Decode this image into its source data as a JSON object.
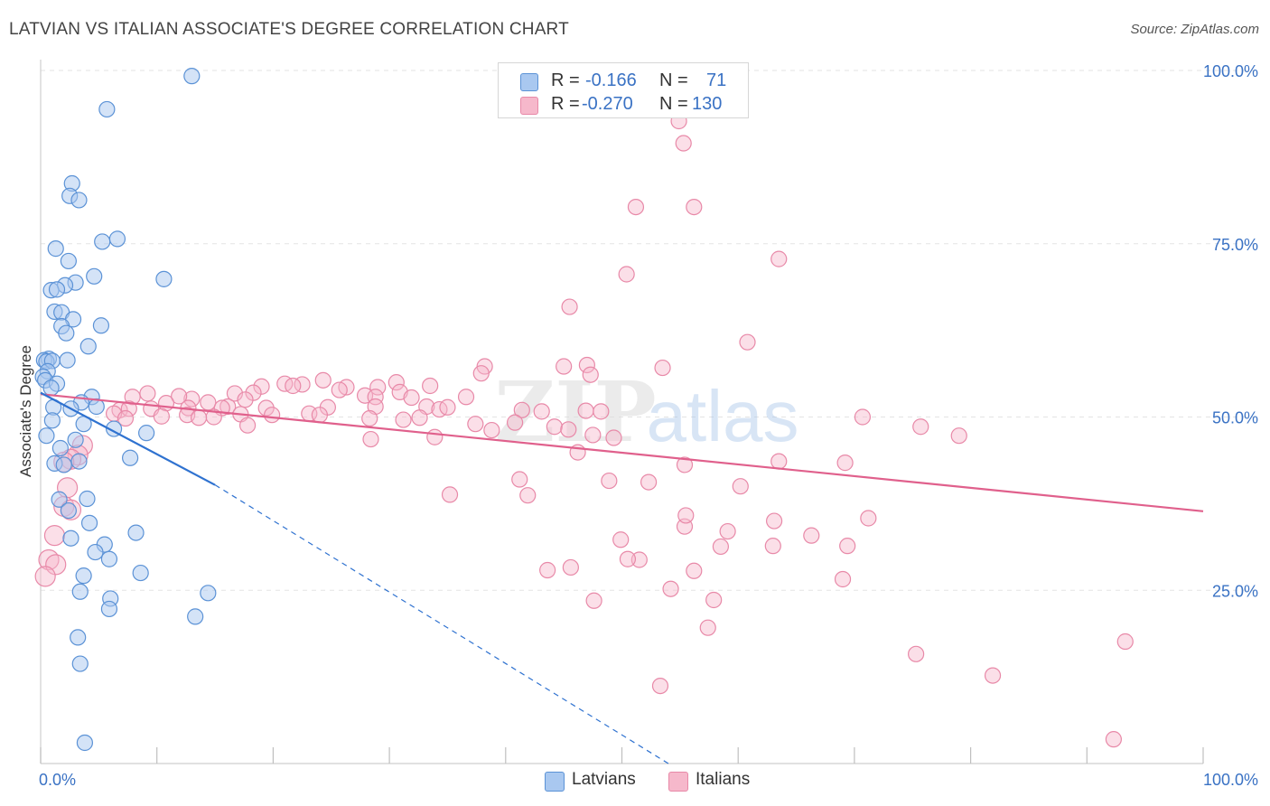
{
  "title": "LATVIAN VS ITALIAN ASSOCIATE'S DEGREE CORRELATION CHART",
  "source": "Source: ZipAtlas.com",
  "watermark": {
    "zip": "ZIP",
    "atlas": "atlas"
  },
  "stats": {
    "row1": {
      "r_label": "R =",
      "r_value": "-0.166",
      "n_label": "N =",
      "n_value": "71"
    },
    "row2": {
      "r_label": "R =",
      "r_value": "-0.270",
      "n_label": "N =",
      "n_value": "130"
    }
  },
  "legend": {
    "latvians": "Latvians",
    "italians": "Italians"
  },
  "colors": {
    "latvian_fill": "#a9c8f0",
    "latvian_stroke": "#5b92d6",
    "latvian_line": "#2f72d0",
    "italian_fill": "#f6b8cb",
    "italian_stroke": "#e889a8",
    "italian_line": "#e0608c",
    "tick_text": "#3a72c4",
    "grid": "#e3e3e3"
  },
  "chart_data": {
    "type": "scatter",
    "title": "LATVIAN VS ITALIAN ASSOCIATE'S DEGREE CORRELATION CHART",
    "xlabel": "",
    "ylabel": "Associate's Degree",
    "xlim": [
      0,
      100
    ],
    "ylim": [
      0,
      100
    ],
    "x_tick_labels": [
      "0.0%",
      "100.0%"
    ],
    "y_ticks": [
      25,
      50,
      75,
      100
    ],
    "y_tick_labels": [
      "25.0%",
      "50.0%",
      "75.0%",
      "100.0%"
    ],
    "grid": true,
    "legend_position": "bottom-center",
    "series": [
      {
        "name": "Latvians",
        "r": -0.166,
        "n": 71,
        "trend": {
          "x0": 0,
          "y0": 53.5,
          "x1": 15,
          "y1": 40.2,
          "dash_to_x": 54,
          "dash_to_y": 0
        },
        "points": [
          [
            13,
            99.2
          ],
          [
            5.7,
            94.4
          ],
          [
            2.7,
            83.7
          ],
          [
            2.5,
            81.9
          ],
          [
            3.3,
            81.3
          ],
          [
            5.3,
            75.3
          ],
          [
            6.6,
            75.7
          ],
          [
            1.3,
            74.3
          ],
          [
            2.4,
            72.5
          ],
          [
            4.6,
            70.3
          ],
          [
            10.6,
            69.9
          ],
          [
            3.0,
            69.4
          ],
          [
            2.1,
            69.0
          ],
          [
            0.9,
            68.3
          ],
          [
            1.4,
            68.4
          ],
          [
            1.2,
            65.2
          ],
          [
            1.8,
            65.1
          ],
          [
            2.8,
            64.1
          ],
          [
            1.8,
            63.1
          ],
          [
            5.2,
            63.2
          ],
          [
            2.2,
            62.1
          ],
          [
            4.1,
            60.2
          ],
          [
            0.7,
            58.4
          ],
          [
            0.3,
            58.2
          ],
          [
            0.5,
            58.0
          ],
          [
            1.0,
            58.1
          ],
          [
            2.3,
            58.2
          ],
          [
            0.6,
            56.6
          ],
          [
            0.2,
            55.8
          ],
          [
            0.4,
            55.3
          ],
          [
            1.4,
            54.8
          ],
          [
            0.9,
            54.2
          ],
          [
            4.4,
            52.9
          ],
          [
            3.5,
            52.1
          ],
          [
            1.1,
            51.4
          ],
          [
            2.6,
            51.2
          ],
          [
            4.8,
            51.5
          ],
          [
            1.0,
            49.5
          ],
          [
            3.7,
            49.0
          ],
          [
            6.3,
            48.3
          ],
          [
            9.1,
            47.7
          ],
          [
            0.5,
            47.3
          ],
          [
            3.0,
            46.7
          ],
          [
            1.7,
            45.5
          ],
          [
            1.2,
            43.3
          ],
          [
            2.0,
            43.1
          ],
          [
            7.7,
            44.1
          ],
          [
            3.3,
            43.6
          ],
          [
            1.6,
            38.1
          ],
          [
            4.0,
            38.2
          ],
          [
            2.4,
            36.5
          ],
          [
            4.2,
            34.7
          ],
          [
            8.2,
            33.3
          ],
          [
            2.6,
            32.5
          ],
          [
            5.5,
            31.6
          ],
          [
            4.7,
            30.5
          ],
          [
            5.9,
            29.5
          ],
          [
            8.6,
            27.5
          ],
          [
            3.7,
            27.1
          ],
          [
            3.4,
            24.8
          ],
          [
            6.0,
            23.8
          ],
          [
            14.4,
            24.6
          ],
          [
            5.9,
            22.3
          ],
          [
            13.3,
            21.2
          ],
          [
            3.2,
            18.2
          ],
          [
            3.4,
            14.4
          ],
          [
            3.8,
            3.0
          ]
        ]
      },
      {
        "name": "Italians",
        "r": -0.27,
        "n": 130,
        "trend": {
          "x0": 0,
          "y0": 53.3,
          "x1": 100,
          "y1": 36.4
        },
        "points": [
          [
            54.9,
            92.7
          ],
          [
            55.3,
            89.5
          ],
          [
            51.2,
            80.3
          ],
          [
            56.2,
            80.3
          ],
          [
            63.5,
            72.8
          ],
          [
            50.4,
            70.6
          ],
          [
            45.5,
            65.9
          ],
          [
            60.8,
            60.8
          ],
          [
            45.0,
            57.3
          ],
          [
            53.5,
            57.1
          ],
          [
            47.0,
            57.5
          ],
          [
            38.2,
            57.3
          ],
          [
            37.9,
            56.3
          ],
          [
            47.3,
            56.1
          ],
          [
            24.3,
            55.3
          ],
          [
            22.5,
            54.7
          ],
          [
            30.6,
            55.0
          ],
          [
            33.5,
            54.5
          ],
          [
            21.0,
            54.8
          ],
          [
            19.0,
            54.4
          ],
          [
            26.3,
            54.3
          ],
          [
            13.0,
            52.6
          ],
          [
            16.7,
            53.4
          ],
          [
            18.3,
            53.5
          ],
          [
            21.7,
            54.5
          ],
          [
            29.0,
            54.3
          ],
          [
            25.7,
            53.9
          ],
          [
            30.9,
            53.6
          ],
          [
            31.9,
            52.8
          ],
          [
            36.6,
            52.9
          ],
          [
            17.6,
            52.5
          ],
          [
            27.9,
            53.1
          ],
          [
            28.8,
            52.9
          ],
          [
            11.9,
            53.0
          ],
          [
            7.9,
            52.9
          ],
          [
            9.2,
            53.4
          ],
          [
            10.8,
            52.0
          ],
          [
            14.4,
            52.1
          ],
          [
            16.1,
            51.5
          ],
          [
            12.7,
            51.3
          ],
          [
            15.6,
            51.3
          ],
          [
            19.4,
            51.3
          ],
          [
            9.5,
            51.2
          ],
          [
            6.8,
            51.0
          ],
          [
            7.6,
            51.2
          ],
          [
            24.7,
            51.4
          ],
          [
            28.8,
            51.5
          ],
          [
            33.2,
            51.5
          ],
          [
            34.3,
            51.1
          ],
          [
            35.0,
            51.4
          ],
          [
            41.4,
            51.0
          ],
          [
            43.1,
            50.8
          ],
          [
            46.9,
            50.9
          ],
          [
            48.2,
            50.8
          ],
          [
            10.4,
            50.1
          ],
          [
            12.6,
            50.3
          ],
          [
            14.9,
            50.0
          ],
          [
            17.2,
            50.4
          ],
          [
            19.9,
            50.3
          ],
          [
            23.1,
            50.5
          ],
          [
            13.6,
            49.9
          ],
          [
            24.0,
            50.3
          ],
          [
            28.3,
            49.8
          ],
          [
            31.2,
            49.6
          ],
          [
            32.6,
            49.9
          ],
          [
            40.8,
            49.2
          ],
          [
            37.4,
            49.0
          ],
          [
            17.8,
            48.8
          ],
          [
            38.8,
            48.1
          ],
          [
            44.2,
            48.6
          ],
          [
            45.4,
            48.2
          ],
          [
            47.5,
            47.4
          ],
          [
            49.3,
            47.0
          ],
          [
            33.9,
            47.1
          ],
          [
            28.4,
            46.8
          ],
          [
            6.3,
            50.5
          ],
          [
            7.3,
            49.8
          ],
          [
            70.7,
            50.0
          ],
          [
            75.7,
            48.6
          ],
          [
            79.0,
            47.3
          ],
          [
            3.6,
            45.9
          ],
          [
            3.2,
            44.5
          ],
          [
            2.6,
            43.9
          ],
          [
            2.0,
            43.5
          ],
          [
            46.2,
            44.9
          ],
          [
            55.4,
            43.1
          ],
          [
            63.5,
            43.6
          ],
          [
            69.2,
            43.4
          ],
          [
            41.2,
            41.0
          ],
          [
            52.3,
            40.6
          ],
          [
            48.9,
            40.8
          ],
          [
            41.9,
            38.7
          ],
          [
            35.2,
            38.8
          ],
          [
            2.3,
            39.8
          ],
          [
            2.0,
            37.1
          ],
          [
            2.6,
            36.6
          ],
          [
            55.4,
            34.2
          ],
          [
            71.2,
            35.4
          ],
          [
            59.1,
            33.5
          ],
          [
            66.3,
            32.9
          ],
          [
            69.4,
            31.4
          ],
          [
            63.0,
            31.4
          ],
          [
            58.5,
            31.3
          ],
          [
            0.7,
            29.4
          ],
          [
            1.2,
            32.9
          ],
          [
            49.9,
            32.3
          ],
          [
            51.5,
            29.4
          ],
          [
            50.5,
            29.5
          ],
          [
            45.6,
            28.3
          ],
          [
            56.2,
            27.8
          ],
          [
            43.6,
            27.9
          ],
          [
            1.3,
            28.7
          ],
          [
            0.4,
            27.0
          ],
          [
            69.0,
            26.6
          ],
          [
            54.2,
            25.2
          ],
          [
            47.6,
            23.5
          ],
          [
            57.9,
            23.6
          ],
          [
            57.4,
            19.6
          ],
          [
            75.3,
            15.8
          ],
          [
            81.9,
            12.7
          ],
          [
            93.3,
            17.6
          ],
          [
            53.3,
            11.2
          ],
          [
            92.3,
            3.5
          ],
          [
            63.1,
            35.0
          ],
          [
            55.5,
            35.8
          ],
          [
            60.2,
            40.0
          ]
        ]
      }
    ]
  }
}
